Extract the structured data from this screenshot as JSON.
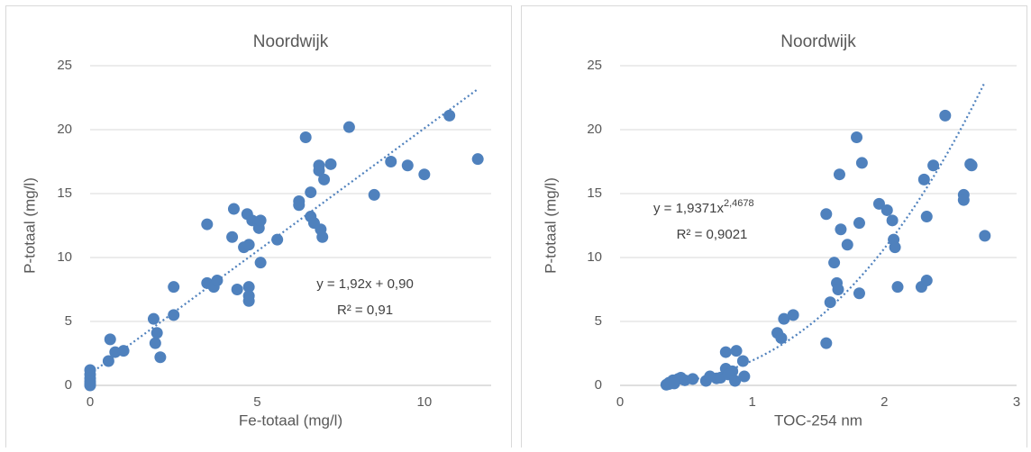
{
  "chart_data": [
    {
      "type": "scatter",
      "title": "Noordwijk",
      "x_label": "Fe-totaal (mg/l)",
      "y_label": "P-totaal (mg/l)",
      "color": "#4f81bd",
      "grid": true,
      "xlim": [
        0,
        12
      ],
      "xticks": [
        0,
        5,
        10
      ],
      "ylim": [
        0,
        25
      ],
      "yticks": [
        0,
        5,
        10,
        15,
        20,
        25
      ],
      "series": [
        {
          "name": "Noordwijk",
          "x": [
            0,
            0,
            0,
            0,
            0,
            0,
            0.55,
            0.6,
            0.75,
            1.0,
            1.9,
            1.95,
            2.0,
            2.1,
            2.5,
            2.5,
            3.5,
            3.5,
            3.7,
            3.8,
            4.3,
            4.25,
            4.4,
            4.6,
            4.75,
            4.7,
            4.85,
            4.75,
            4.75,
            4.75,
            5.05,
            5.05,
            5.1,
            5.1,
            5.6,
            6.25,
            6.25,
            6.45,
            6.6,
            6.6,
            6.7,
            6.85,
            6.85,
            6.9,
            6.95,
            7.0,
            7.2,
            7.75,
            8.5,
            9.0,
            9.5,
            10.0,
            10.75,
            11.6
          ],
          "y": [
            1.2,
            0.85,
            0.55,
            0.3,
            0.1,
            0,
            1.9,
            3.6,
            2.6,
            2.7,
            5.2,
            3.3,
            4.1,
            2.2,
            5.5,
            7.7,
            12.6,
            8.0,
            7.7,
            8.2,
            13.8,
            11.6,
            7.5,
            10.8,
            11.0,
            13.4,
            12.9,
            7.7,
            7.0,
            6.6,
            12.7,
            12.3,
            9.6,
            12.9,
            11.4,
            14.4,
            14.1,
            19.4,
            13.2,
            15.1,
            12.7,
            17.2,
            16.8,
            12.2,
            11.6,
            16.1,
            17.3,
            20.2,
            14.9,
            17.5,
            17.2,
            16.5,
            21.1,
            17.7
          ]
        }
      ],
      "trendline": {
        "type": "linear",
        "slope": 1.92,
        "intercept": 0.9,
        "equation": "y = 1,92x + 0,90",
        "r2_label": "R² = 0,91"
      }
    },
    {
      "type": "scatter",
      "title": "Noordwijk",
      "x_label": "TOC-254 nm",
      "y_label": "P-totaal (mg/l)",
      "color": "#4f81bd",
      "grid": true,
      "xlim": [
        0,
        3
      ],
      "xticks": [
        0,
        1,
        2,
        3
      ],
      "ylim": [
        0,
        25
      ],
      "yticks": [
        0,
        5,
        10,
        15,
        20,
        25
      ],
      "series": [
        {
          "name": "Noordwijk",
          "x": [
            0.35,
            0.37,
            0.4,
            0.44,
            0.46,
            0.49,
            0.55,
            0.37,
            0.41,
            0.65,
            0.68,
            0.73,
            0.76,
            0.8,
            0.8,
            0.85,
            0.82,
            0.87,
            0.88,
            0.93,
            0.94,
            1.19,
            1.22,
            1.24,
            1.31,
            1.56,
            1.56,
            1.59,
            1.62,
            1.64,
            1.65,
            1.66,
            1.67,
            1.72,
            1.79,
            1.81,
            1.81,
            1.83,
            1.96,
            2.02,
            2.06,
            2.07,
            2.08,
            2.1,
            2.28,
            2.32,
            2.3,
            2.32,
            2.37,
            2.46,
            2.6,
            2.6,
            2.65,
            2.66,
            2.76
          ],
          "y": [
            0.05,
            0.2,
            0.4,
            0.5,
            0.6,
            0.4,
            0.5,
            0.1,
            0.15,
            0.35,
            0.7,
            0.55,
            0.6,
            2.6,
            1.3,
            1.1,
            0.85,
            0.35,
            2.7,
            1.9,
            0.7,
            4.1,
            3.7,
            5.2,
            5.5,
            3.3,
            13.4,
            6.5,
            9.6,
            8.0,
            7.5,
            16.5,
            12.2,
            11.0,
            19.4,
            12.7,
            7.2,
            17.4,
            14.2,
            13.7,
            12.9,
            11.4,
            10.8,
            7.7,
            7.7,
            8.2,
            16.1,
            13.2,
            17.2,
            21.1,
            14.9,
            14.5,
            17.3,
            17.2,
            11.7
          ]
        }
      ],
      "trendline": {
        "type": "power",
        "coefficient": 1.9371,
        "exponent": 2.4678,
        "equation": "y = 1,9371x",
        "exponent_label": "2,4678",
        "r2_label": "R² = 0,9021"
      }
    }
  ]
}
